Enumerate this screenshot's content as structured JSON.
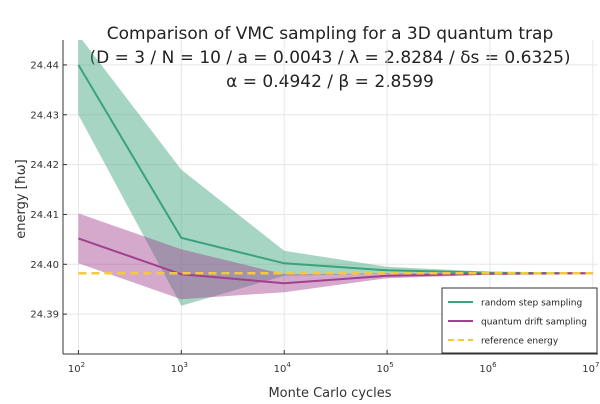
{
  "chart_data": {
    "type": "line",
    "title_lines": [
      "Comparison of VMC sampling for a 3D quantum trap",
      "(D = 3 / N = 10 / a = 0.0043 / λ = 2.8284 / δs = 0.6325)",
      "α = 0.4942 / β = 2.8599"
    ],
    "xlabel": "Monte Carlo cycles",
    "ylabel": "energy [ħω]",
    "xscale": "log",
    "xlim_exp": [
      1.85,
      7.05
    ],
    "ylim": [
      24.382,
      24.445
    ],
    "x_ticks": [
      {
        "base": "10",
        "exp": "2",
        "v": 2
      },
      {
        "base": "10",
        "exp": "3",
        "v": 3
      },
      {
        "base": "10",
        "exp": "4",
        "v": 4
      },
      {
        "base": "10",
        "exp": "5",
        "v": 5
      },
      {
        "base": "10",
        "exp": "6",
        "v": 6
      },
      {
        "base": "10",
        "exp": "7",
        "v": 7
      }
    ],
    "y_ticks": [
      {
        "label": "24.39",
        "v": 24.39
      },
      {
        "label": "24.40",
        "v": 24.4
      },
      {
        "label": "24.41",
        "v": 24.41
      },
      {
        "label": "24.42",
        "v": 24.42
      },
      {
        "label": "24.43",
        "v": 24.43
      },
      {
        "label": "24.44",
        "v": 24.44
      }
    ],
    "grid": true,
    "legend_position": "bottom-right",
    "x": [
      100,
      1000,
      10000,
      100000,
      1000000,
      10000000
    ],
    "series": [
      {
        "name": "random step sampling",
        "color": "#3aa37a",
        "values": [
          24.44,
          24.4053,
          24.4002,
          24.3988,
          24.3983,
          24.3982
        ],
        "band_upper": [
          24.446,
          24.419,
          24.4027,
          24.3995,
          24.3985,
          24.3983
        ],
        "band_lower": [
          24.43,
          24.3917,
          24.3977,
          24.3981,
          24.3981,
          24.3981
        ]
      },
      {
        "name": "quantum drift sampling",
        "color": "#a0408e",
        "values": [
          24.4052,
          24.398,
          24.3962,
          24.3977,
          24.3981,
          24.3982
        ],
        "band_upper": [
          24.4102,
          24.403,
          24.398,
          24.3982,
          24.3983,
          24.3983
        ],
        "band_lower": [
          24.4002,
          24.393,
          24.3944,
          24.3972,
          24.3979,
          24.3981
        ]
      }
    ],
    "reference": {
      "name": "reference energy",
      "color": "#f5c842",
      "value": 24.3982
    }
  }
}
